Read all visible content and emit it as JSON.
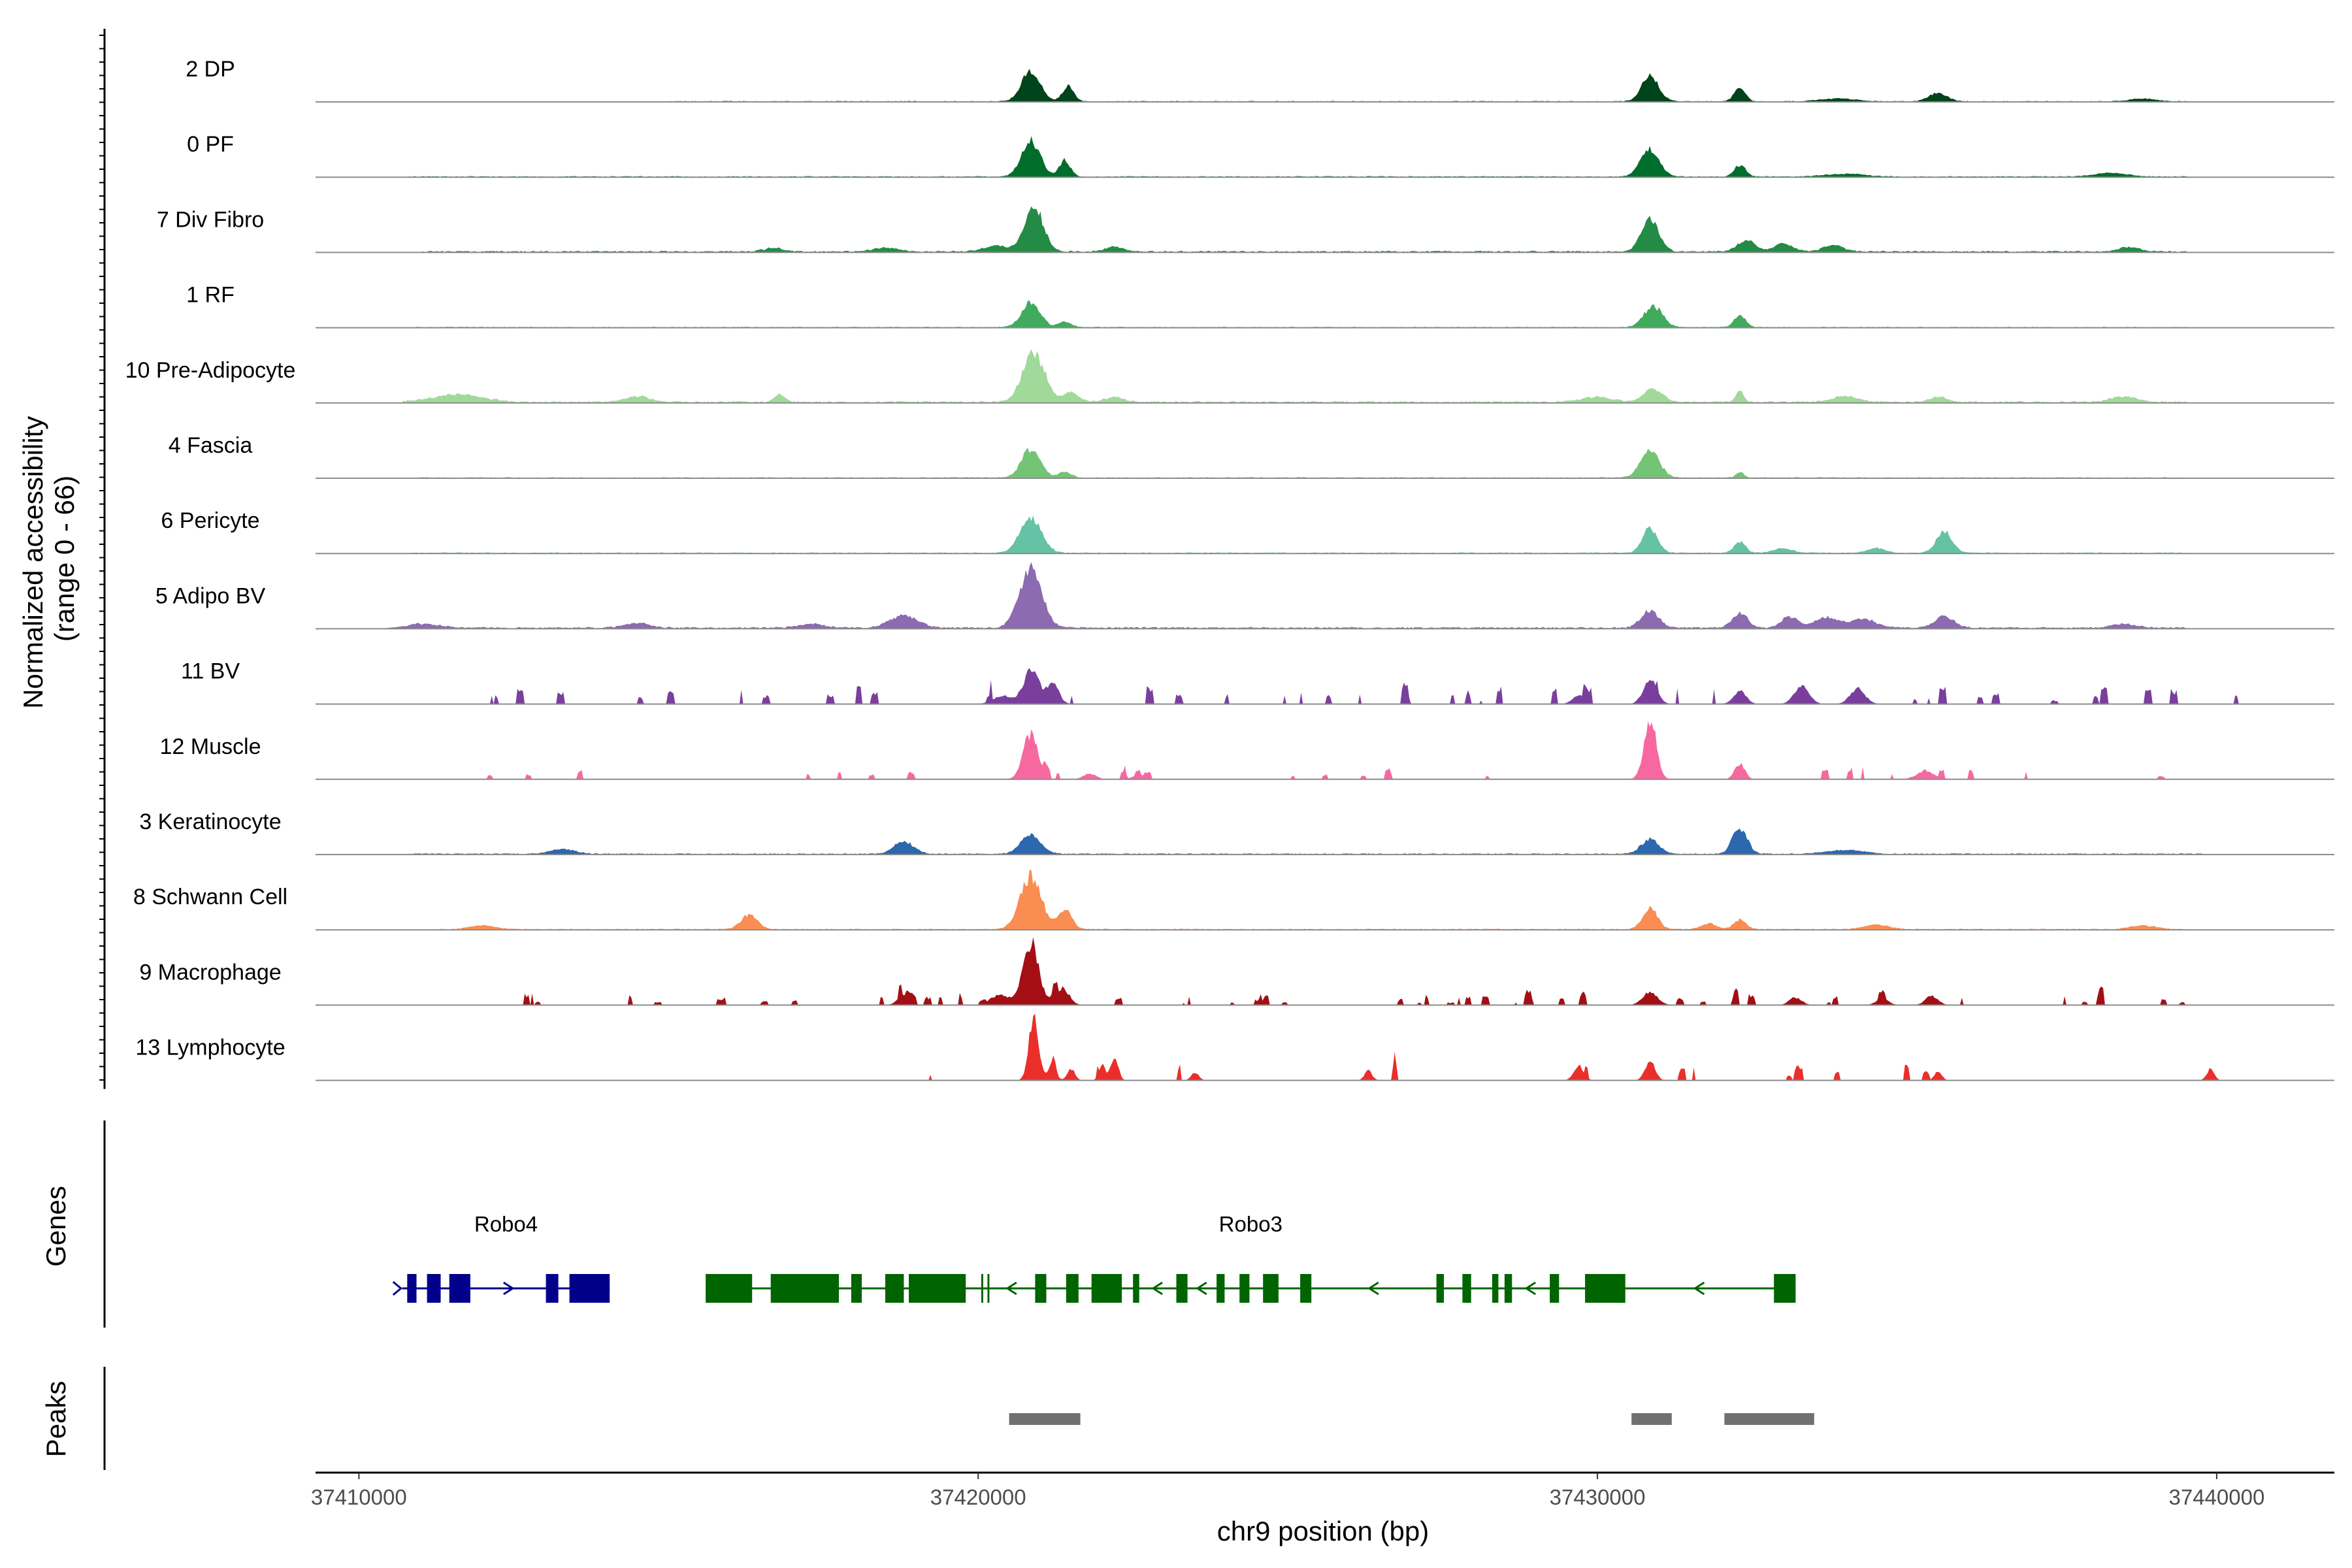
{
  "chart_data": {
    "type": "area",
    "title": "",
    "xlabel": "chr9 position (bp)",
    "ylabel": "Normalized accessibility\n(range 0 - 66)",
    "ylim": [
      0,
      66
    ],
    "xlim": [
      37409300,
      37441900
    ],
    "x_ticks": [
      {
        "value": 37410000,
        "label": "37410000"
      },
      {
        "value": 37420000,
        "label": "37420000"
      },
      {
        "value": 37430000,
        "label": "37430000"
      },
      {
        "value": 37440000,
        "label": "37440000"
      }
    ],
    "series": [
      {
        "name": "2 DP",
        "color": "#00441b",
        "noise": 0.7,
        "noise_range": [
          37415000,
          37439500
        ],
        "peaks": [
          [
            37420850,
            32,
            150
          ],
          [
            37421450,
            16,
            90
          ],
          [
            37430850,
            26,
            140
          ],
          [
            37432300,
            15,
            90
          ],
          [
            37433900,
            3,
            300
          ],
          [
            37435500,
            9,
            150
          ],
          [
            37438800,
            3,
            200
          ]
        ]
      },
      {
        "name": "0 PF",
        "color": "#006d2c",
        "noise": 0.8,
        "noise_range": [
          37410800,
          37439500
        ],
        "peaks": [
          [
            37420850,
            38,
            150
          ],
          [
            37421400,
            17,
            90
          ],
          [
            37430850,
            28,
            150
          ],
          [
            37432300,
            12,
            90
          ],
          [
            37434000,
            3,
            300
          ],
          [
            37438300,
            4,
            250
          ]
        ]
      },
      {
        "name": "7 Div Fibro",
        "color": "#238b45",
        "noise": 1.2,
        "noise_range": [
          37411000,
          37439500
        ],
        "peaks": [
          [
            37420900,
            48,
            150
          ],
          [
            37420300,
            6,
            200
          ],
          [
            37430850,
            34,
            140
          ],
          [
            37432400,
            12,
            140
          ],
          [
            37433000,
            8,
            150
          ],
          [
            37433800,
            7,
            150
          ],
          [
            37438600,
            5,
            150
          ],
          [
            37422200,
            5,
            150
          ],
          [
            37418500,
            4,
            200
          ],
          [
            37416700,
            4,
            150
          ]
        ]
      },
      {
        "name": "1 RF",
        "color": "#41ab5d",
        "noise": 0.7,
        "noise_range": [
          37410800,
          37439500
        ],
        "peaks": [
          [
            37420850,
            26,
            150
          ],
          [
            37421400,
            6,
            100
          ],
          [
            37430900,
            22,
            150
          ],
          [
            37432300,
            13,
            90
          ]
        ]
      },
      {
        "name": "10 Pre-Adipocyte",
        "color": "#a1d99b",
        "noise": 1.3,
        "noise_range": [
          37410700,
          37439500
        ],
        "peaks": [
          [
            37420900,
            50,
            180
          ],
          [
            37421500,
            10,
            120
          ],
          [
            37411600,
            8,
            400
          ],
          [
            37414500,
            6,
            200
          ],
          [
            37416800,
            8,
            80
          ],
          [
            37430900,
            14,
            150
          ],
          [
            37432300,
            12,
            60
          ],
          [
            37430000,
            5,
            250
          ],
          [
            37434000,
            6,
            200
          ],
          [
            37438500,
            6,
            200
          ],
          [
            37435500,
            5,
            150
          ],
          [
            37422200,
            5,
            150
          ]
        ]
      },
      {
        "name": "4 Fascia",
        "color": "#74c476",
        "noise": 0.8,
        "noise_range": [
          37410800,
          37439500
        ],
        "peaks": [
          [
            37420850,
            30,
            150
          ],
          [
            37421400,
            6,
            100
          ],
          [
            37430850,
            28,
            150
          ],
          [
            37432300,
            6,
            60
          ]
        ]
      },
      {
        "name": "6 Pericyte",
        "color": "#66c2a4",
        "noise": 0.8,
        "noise_range": [
          37410800,
          37439500
        ],
        "peaks": [
          [
            37420850,
            36,
            170
          ],
          [
            37430850,
            26,
            120
          ],
          [
            37432300,
            12,
            90
          ],
          [
            37435600,
            22,
            130
          ],
          [
            37433000,
            5,
            150
          ],
          [
            37434500,
            5,
            150
          ]
        ]
      },
      {
        "name": "5 Adipo BV",
        "color": "#8c6bb1",
        "noise": 1.3,
        "noise_range": [
          37410800,
          37439500
        ],
        "peaks": [
          [
            37420850,
            62,
            180
          ],
          [
            37418800,
            13,
            220
          ],
          [
            37430850,
            18,
            140
          ],
          [
            37432300,
            16,
            120
          ],
          [
            37433100,
            12,
            130
          ],
          [
            37433700,
            11,
            200
          ],
          [
            37434300,
            9,
            200
          ],
          [
            37435600,
            12,
            150
          ],
          [
            37414500,
            5,
            200
          ],
          [
            37417300,
            4,
            200
          ],
          [
            37438500,
            4,
            200
          ],
          [
            37411000,
            4,
            300
          ]
        ]
      },
      {
        "name": "11 BV",
        "color": "#7a3e9d",
        "mode": "sparse",
        "noise_range": [
          37412000,
          37440400
        ],
        "sparse_count": 45,
        "sparse_max": 14,
        "peaks": [
          [
            37420850,
            35,
            120
          ],
          [
            37421200,
            22,
            100
          ],
          [
            37420400,
            9,
            150
          ],
          [
            37430850,
            25,
            110
          ],
          [
            37433300,
            18,
            120
          ],
          [
            37434200,
            16,
            120
          ],
          [
            37432300,
            14,
            100
          ],
          [
            37429700,
            9,
            100
          ]
        ]
      },
      {
        "name": "12 Muscle",
        "color": "#f768a1",
        "mode": "sparse",
        "noise_range": [
          37411500,
          37439800
        ],
        "sparse_count": 30,
        "sparse_max": 10,
        "peaks": [
          [
            37420850,
            48,
            120
          ],
          [
            37430850,
            58,
            100
          ],
          [
            37432300,
            17,
            80
          ],
          [
            37435300,
            8,
            150
          ],
          [
            37421800,
            6,
            100
          ],
          [
            37422600,
            5,
            100
          ]
        ]
      },
      {
        "name": "3 Keratinocyte",
        "color": "#2c68ad",
        "noise": 0.9,
        "noise_range": [
          37410800,
          37439800
        ],
        "peaks": [
          [
            37420850,
            20,
            160
          ],
          [
            37418800,
            13,
            160
          ],
          [
            37430850,
            16,
            140
          ],
          [
            37432300,
            27,
            120
          ],
          [
            37413300,
            5,
            200
          ],
          [
            37434000,
            4,
            300
          ]
        ]
      },
      {
        "name": "8 Schwann Cell",
        "color": "#f98d52",
        "noise": 0.8,
        "noise_range": [
          37411300,
          37439500
        ],
        "peaks": [
          [
            37420850,
            55,
            170
          ],
          [
            37421400,
            20,
            110
          ],
          [
            37416300,
            15,
            130
          ],
          [
            37430850,
            22,
            120
          ],
          [
            37432300,
            10,
            100
          ],
          [
            37431800,
            6,
            120
          ],
          [
            37434500,
            5,
            200
          ],
          [
            37438800,
            4,
            200
          ],
          [
            37412000,
            4,
            200
          ]
        ]
      },
      {
        "name": "9 Macrophage",
        "color": "#a30f15",
        "mode": "sparse",
        "noise_range": [
          37412200,
          37439700
        ],
        "sparse_count": 60,
        "sparse_max": 10,
        "peaks": [
          [
            37420850,
            62,
            130
          ],
          [
            37420350,
            11,
            150
          ],
          [
            37421350,
            18,
            110
          ],
          [
            37418800,
            10,
            100
          ],
          [
            37430850,
            14,
            120
          ],
          [
            37435400,
            10,
            100
          ],
          [
            37434600,
            7,
            100
          ],
          [
            37433200,
            8,
            100
          ]
        ]
      },
      {
        "name": "13 Lymphocyte",
        "color": "#ea2f2a",
        "mode": "sparse",
        "noise_range": [
          37418800,
          37440000
        ],
        "sparse_count": 15,
        "sparse_max": 14,
        "peaks": [
          [
            37420900,
            66,
            80
          ],
          [
            37421200,
            18,
            60
          ],
          [
            37422000,
            17,
            50
          ],
          [
            37422200,
            25,
            60
          ],
          [
            37421500,
            12,
            60
          ],
          [
            37430850,
            20,
            80
          ],
          [
            37429700,
            15,
            80
          ],
          [
            37435500,
            9,
            60
          ],
          [
            37439900,
            12,
            60
          ],
          [
            37426300,
            10,
            60
          ],
          [
            37423500,
            8,
            60
          ]
        ]
      }
    ],
    "genes": [
      {
        "name": "Robo4",
        "color": "#00008b",
        "strand": "+",
        "start": 37410700,
        "end": 37414050,
        "exons": [
          [
            37410780,
            37410930
          ],
          [
            37411100,
            37411320
          ],
          [
            37411460,
            37411800
          ],
          [
            37413020,
            37413220
          ],
          [
            37413400,
            37414050
          ]
        ]
      },
      {
        "name": "Robo3",
        "color": "#006400",
        "strand": "-",
        "start": 37415600,
        "end": 37433200,
        "exons": [
          [
            37415600,
            37416350
          ],
          [
            37416650,
            37417750
          ],
          [
            37417950,
            37418120
          ],
          [
            37418500,
            37418800
          ],
          [
            37418880,
            37419800
          ],
          [
            37420050,
            37420070
          ],
          [
            37420150,
            37420170
          ],
          [
            37420920,
            37421100
          ],
          [
            37421420,
            37421620
          ],
          [
            37421830,
            37422320
          ],
          [
            37422500,
            37422600
          ],
          [
            37423200,
            37423380
          ],
          [
            37423850,
            37423980
          ],
          [
            37424220,
            37424380
          ],
          [
            37424600,
            37424850
          ],
          [
            37425200,
            37425380
          ],
          [
            37427400,
            37427520
          ],
          [
            37427820,
            37427960
          ],
          [
            37428300,
            37428400
          ],
          [
            37428500,
            37428620
          ],
          [
            37429230,
            37429380
          ],
          [
            37429800,
            37430450
          ],
          [
            37432850,
            37433200
          ]
        ]
      }
    ],
    "peaks_track": [
      [
        37420500,
        37421650
      ],
      [
        37430550,
        37431200
      ],
      [
        37432050,
        37433500
      ]
    ],
    "panel_labels": {
      "genes": "Genes",
      "peaks": "Peaks"
    }
  }
}
